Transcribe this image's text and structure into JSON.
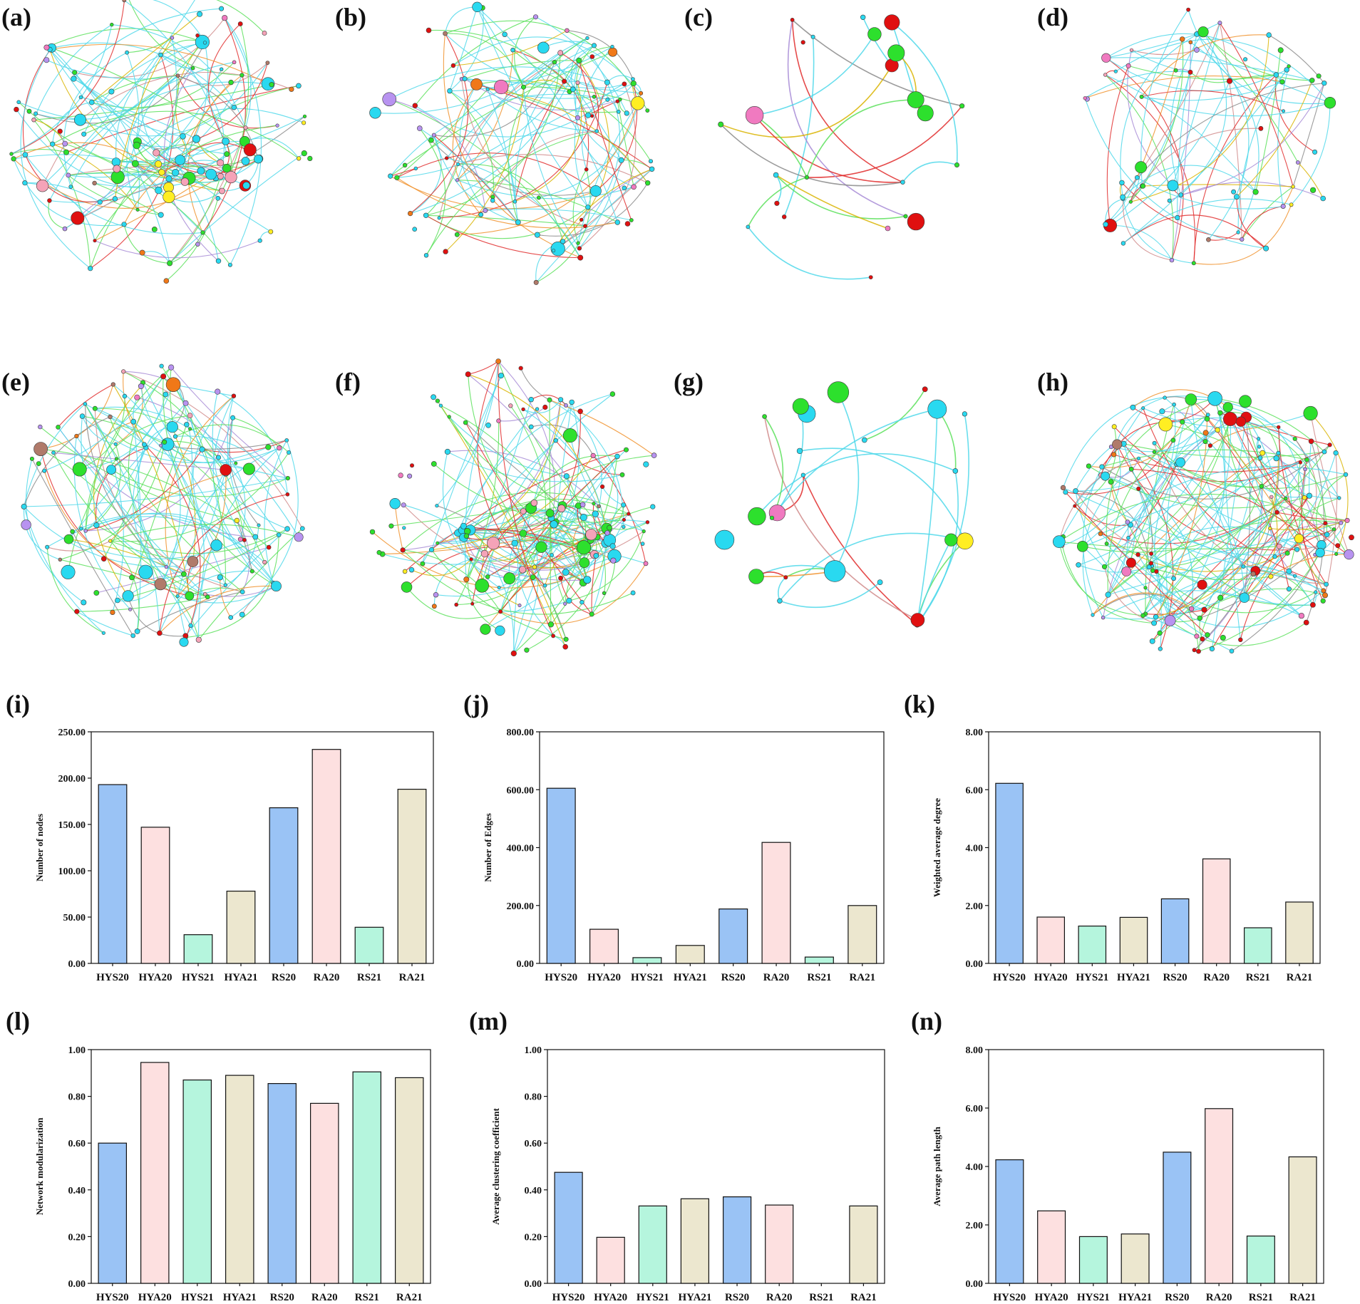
{
  "figure": {
    "network_panels": [
      {
        "label": "(a)",
        "nodes": 120,
        "hubs": 34,
        "hub_color_weights": {
          "#29d9f0": 4,
          "#2de02d": 3,
          "#f5a3b8": 2,
          "#ffee22": 1,
          "#e01010": 1,
          "#b893f0": 1
        }
      },
      {
        "label": "(b)",
        "nodes": 95,
        "hubs": 0,
        "hub_color_weights": {}
      },
      {
        "label": "(c)",
        "nodes": 24,
        "hubs": 0,
        "hub_color_weights": {}
      },
      {
        "label": "(d)",
        "nodes": 62,
        "hubs": 0,
        "hub_color_weights": {}
      },
      {
        "label": "(e)",
        "nodes": 115,
        "hubs": 0,
        "hub_color_weights": {}
      },
      {
        "label": "(f)",
        "nodes": 140,
        "hubs": 40,
        "hub_color_weights": {
          "#29d9f0": 5,
          "#2de02d": 4,
          "#f5a3b8": 1
        }
      },
      {
        "label": "(g)",
        "nodes": 24,
        "hubs": 0,
        "hub_color_weights": {}
      },
      {
        "label": "(h)",
        "nodes": 150,
        "hubs": 0,
        "hub_color_weights": {}
      }
    ],
    "node_color_weights": {
      "#29d9f0": 10,
      "#2de02d": 6,
      "#e01010": 4,
      "#b893f0": 2,
      "#f07818": 1,
      "#ffee22": 1,
      "#f5a3b8": 1,
      "#b07a6a": 1,
      "#f07ac0": 1
    },
    "edge_color_weights": {
      "#4fd8ea": 10,
      "#5ae05a": 6,
      "#e02a2a": 3,
      "#a78bd6": 1,
      "#8a8a8a": 1,
      "#d9b400": 1,
      "#f0902a": 1,
      "#d08a8a": 1
    }
  },
  "chart_data": [
    {
      "type": "bar",
      "label": "(i)",
      "ylabel": "Number of nodes",
      "ylim": [
        0,
        250
      ],
      "ticks": [
        "0.00",
        "50.00",
        "100.00",
        "150.00",
        "200.00",
        "250.00"
      ],
      "categories": [
        "HYS20",
        "HYA20",
        "HYS21",
        "HYA21",
        "RS20",
        "RA20",
        "RS21",
        "RA21"
      ],
      "values": [
        193,
        147,
        31,
        78,
        168,
        231,
        39,
        188
      ]
    },
    {
      "type": "bar",
      "label": "(j)",
      "ylabel": "Number of Edges",
      "ylim": [
        0,
        800
      ],
      "ticks": [
        "0.00",
        "200.00",
        "400.00",
        "600.00",
        "800.00"
      ],
      "categories": [
        "HYS20",
        "HYA20",
        "HYS21",
        "HYA21",
        "RS20",
        "RA20",
        "RS21",
        "RA21"
      ],
      "values": [
        605,
        118,
        20,
        62,
        188,
        418,
        22,
        200
      ]
    },
    {
      "type": "bar",
      "label": "(k)",
      "ylabel": "Weighted average degree",
      "ylim": [
        0,
        8
      ],
      "ticks": [
        "0.00",
        "2.00",
        "4.00",
        "6.00",
        "8.00"
      ],
      "categories": [
        "HYS20",
        "HYA20",
        "HYS21",
        "HYA21",
        "RS20",
        "RA20",
        "RS21",
        "RA21"
      ],
      "values": [
        6.22,
        1.6,
        1.29,
        1.59,
        2.23,
        3.61,
        1.23,
        2.12
      ]
    },
    {
      "type": "bar",
      "label": "(l)",
      "ylabel": "Network modularization",
      "ylim": [
        0,
        1
      ],
      "ticks": [
        "0.00",
        "0.20",
        "0.40",
        "0.60",
        "0.80",
        "1.00"
      ],
      "categories": [
        "HYS20",
        "HYA20",
        "HYS21",
        "HYA21",
        "RS20",
        "RA20",
        "RS21",
        "RA21"
      ],
      "values": [
        0.6,
        0.945,
        0.87,
        0.89,
        0.855,
        0.77,
        0.905,
        0.88
      ]
    },
    {
      "type": "bar",
      "label": "(m)",
      "ylabel": "Average clustering coefficient",
      "ylim": [
        0,
        1
      ],
      "ticks": [
        "0.00",
        "0.20",
        "0.40",
        "0.60",
        "0.80",
        "1.00"
      ],
      "categories": [
        "HYS20",
        "HYA20",
        "HYS21",
        "HYA21",
        "RS20",
        "RA20",
        "RS21",
        "RA21"
      ],
      "values": [
        0.475,
        0.197,
        0.331,
        0.362,
        0.37,
        0.335,
        0,
        0.331
      ]
    },
    {
      "type": "bar",
      "label": "(n)",
      "ylabel": "Average path length",
      "ylim": [
        0,
        8
      ],
      "ticks": [
        "0.00",
        "2.00",
        "4.00",
        "6.00",
        "8.00"
      ],
      "categories": [
        "HYS20",
        "HYA20",
        "HYS21",
        "HYA21",
        "RS20",
        "RA20",
        "RS21",
        "RA21"
      ],
      "values": [
        4.23,
        2.48,
        1.6,
        1.69,
        4.49,
        5.98,
        1.62,
        4.33
      ]
    }
  ],
  "bar_colors": {
    "HYS20": "#9ac3f5",
    "HYA20": "#fde0e0",
    "HYS21": "#b5f5dd",
    "HYA21": "#ece7cf",
    "RS20": "#9ac3f5",
    "RA20": "#fde0e0",
    "RS21": "#b5f5dd",
    "RA21": "#ece7cf"
  }
}
